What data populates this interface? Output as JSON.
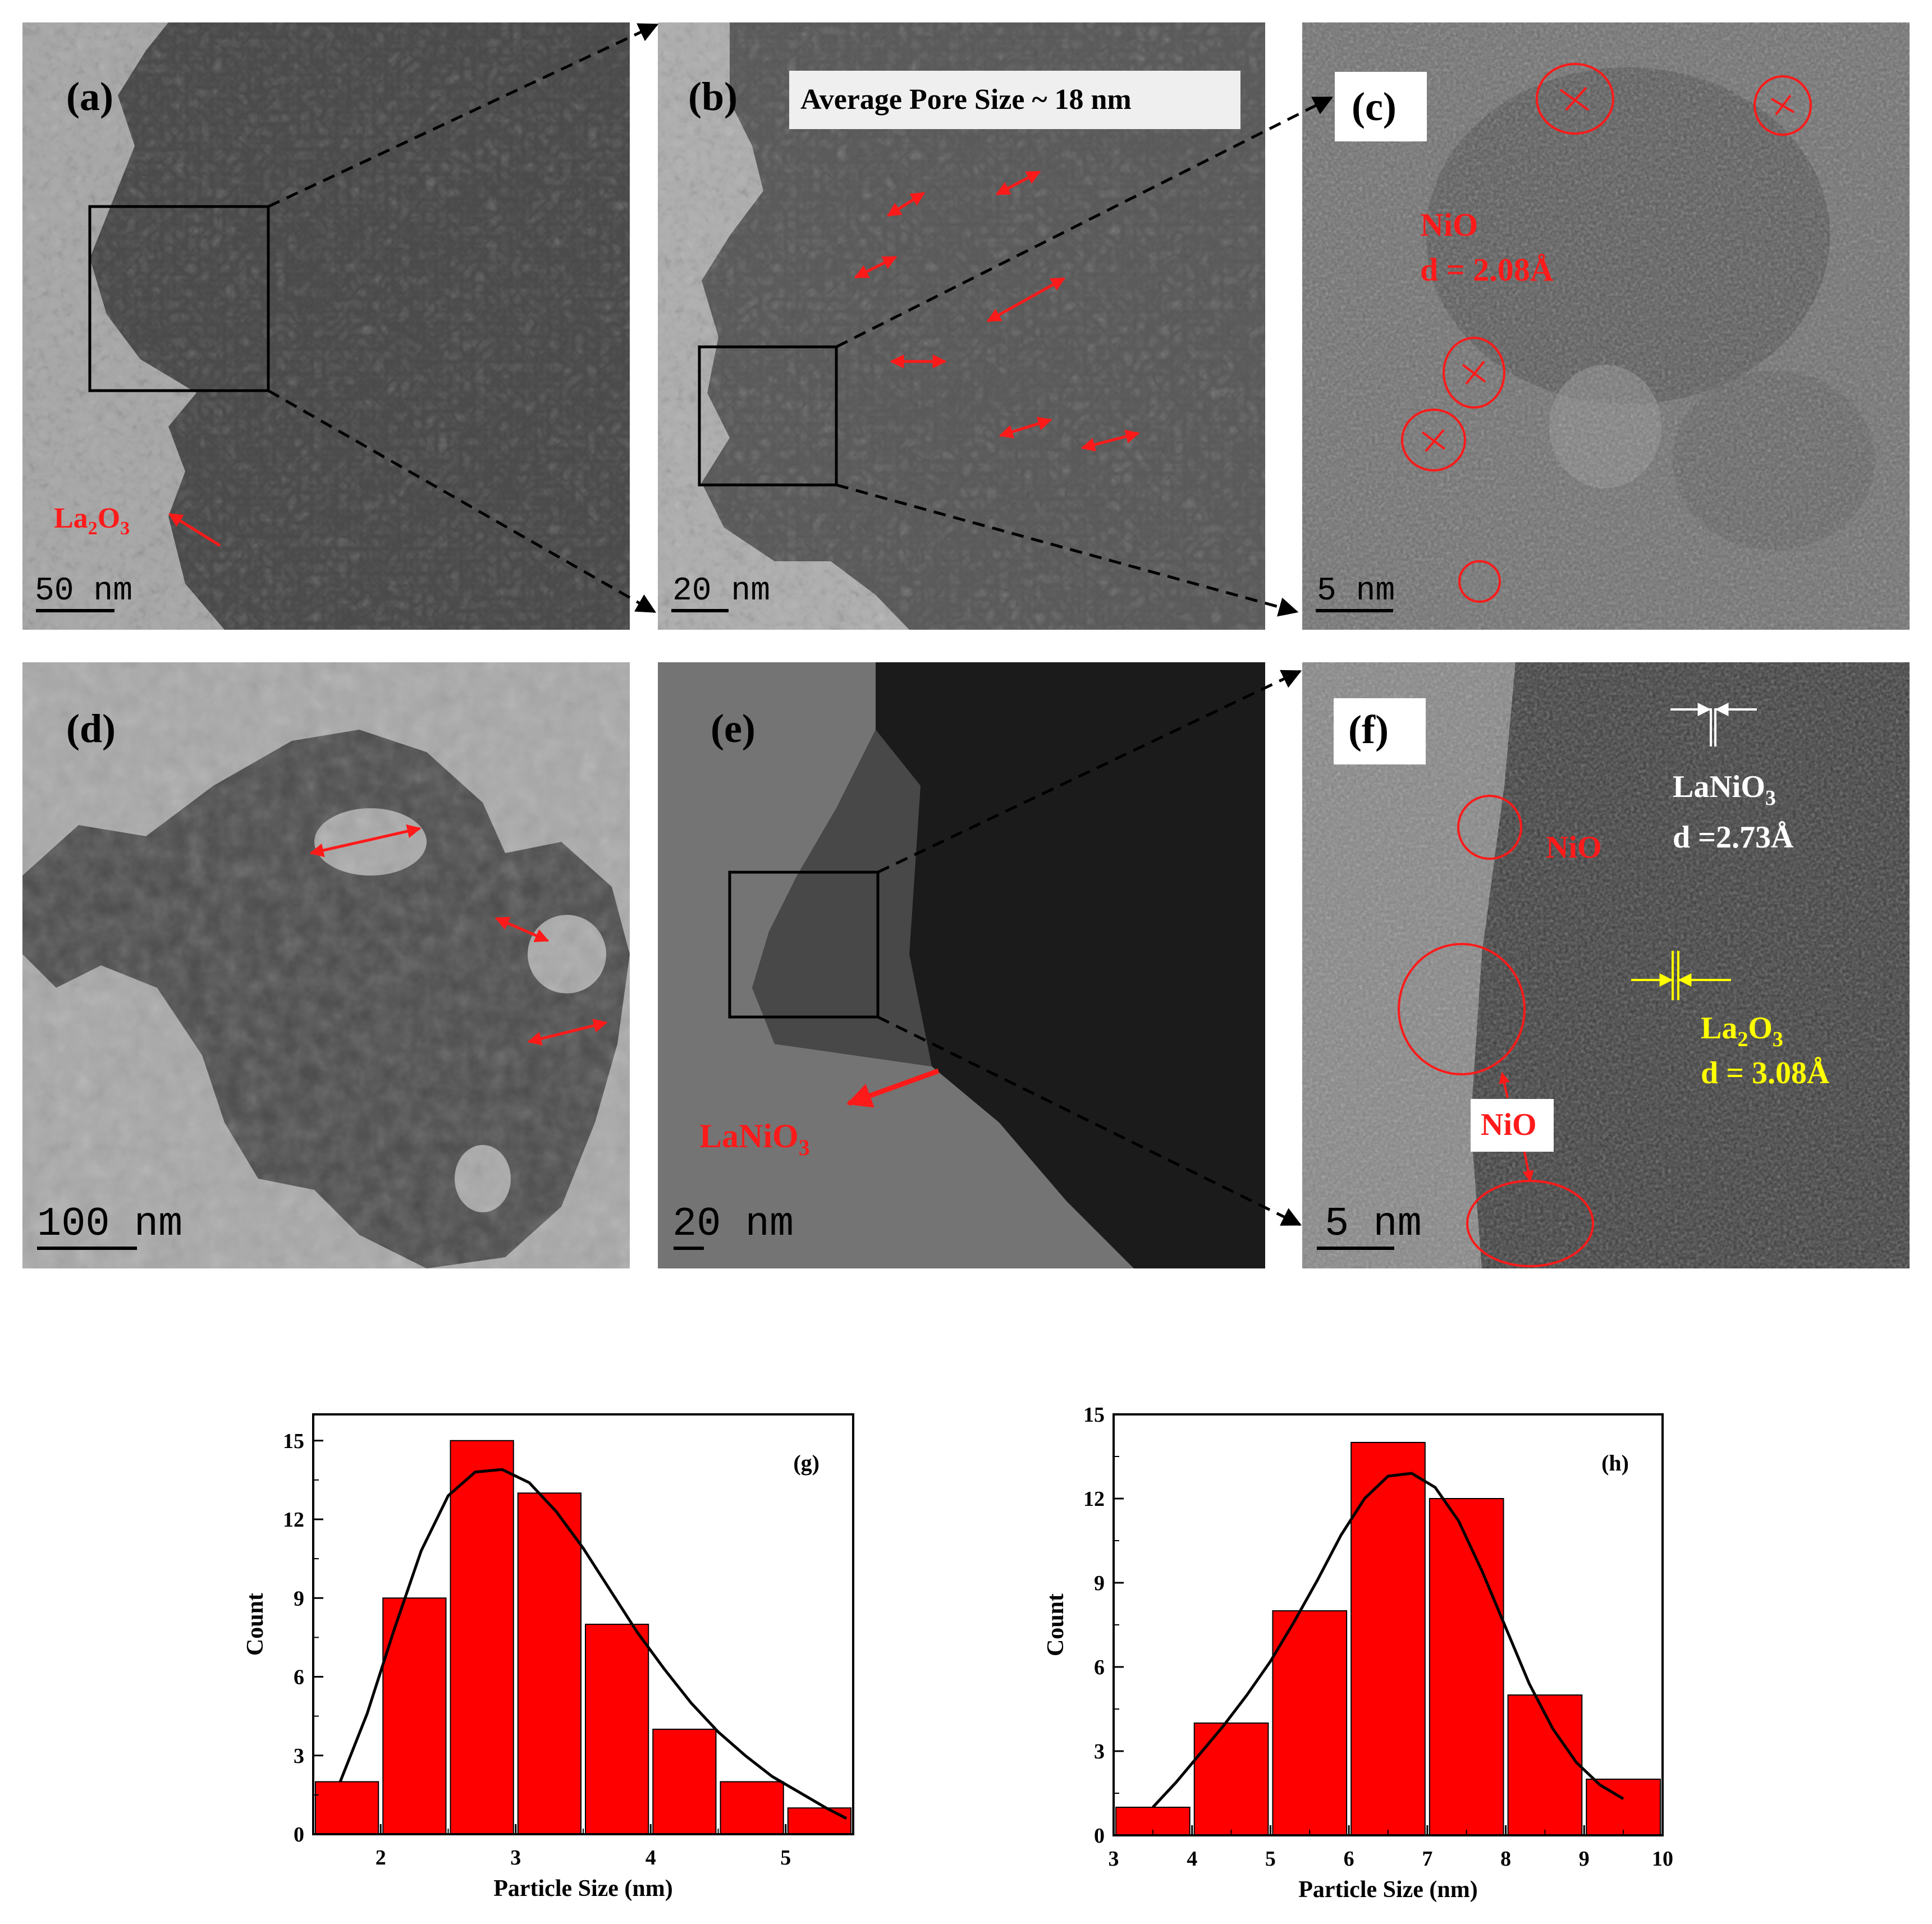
{
  "panels": {
    "a": {
      "label": "(a)",
      "scale_bar": "50 nm",
      "annotation": {
        "prefix": "La",
        "sub1": "2",
        "mid": "O",
        "sub2": "3"
      }
    },
    "b": {
      "label": "(b)",
      "scale_bar": "20 nm",
      "banner": "Average Pore Size ~ 18 nm"
    },
    "c": {
      "label": "(c)",
      "scale_bar": "5 nm",
      "phase": "NiO",
      "d_spacing": "d = 2.08Å"
    },
    "d": {
      "label": "(d)",
      "scale_bar": "100 nm"
    },
    "e": {
      "label": "(e)",
      "scale_bar": "20 nm",
      "annotation": {
        "prefix": "LaNiO",
        "sub": "3"
      }
    },
    "f": {
      "label": "(f)",
      "scale_bar": "5 nm",
      "nio_label_top": "NiO",
      "nio_label_box": "NiO",
      "lanio3": {
        "prefix": "LaNiO",
        "sub": "3",
        "d": "d =2.73Å"
      },
      "la2o3": {
        "prefix": "La",
        "sub1": "2",
        "mid": "O",
        "sub2": "3",
        "d": "d = 3.08Å"
      }
    }
  },
  "colors": {
    "bars": "#ff0000",
    "curve": "#000000",
    "annotation_red": "#ff1a1a",
    "annotation_yellow": "#ffff00",
    "annotation_white": "#ffffff"
  },
  "chart_data": [
    {
      "type": "bar",
      "panel_label": "(g)",
      "xlabel": "Particle Size (nm)",
      "ylabel": "Count",
      "xlim": [
        1.5,
        5.5
      ],
      "ylim": [
        0,
        16
      ],
      "xticks": [
        2,
        3,
        4,
        5
      ],
      "yticks": [
        0,
        3,
        6,
        9,
        12,
        15
      ],
      "bin_width": 0.5,
      "bin_centers": [
        1.75,
        2.25,
        2.75,
        3.25,
        3.75,
        4.25,
        4.75,
        5.25
      ],
      "values": [
        2,
        9,
        15,
        13,
        8,
        4,
        2,
        1
      ],
      "fit_curve": {
        "x": [
          1.7,
          1.9,
          2.1,
          2.3,
          2.5,
          2.7,
          2.9,
          3.1,
          3.3,
          3.5,
          3.7,
          3.9,
          4.1,
          4.3,
          4.5,
          4.7,
          4.9,
          5.1,
          5.3,
          5.45
        ],
        "y": [
          2.0,
          4.6,
          7.8,
          10.8,
          12.9,
          13.8,
          13.9,
          13.4,
          12.3,
          10.9,
          9.3,
          7.7,
          6.3,
          5.0,
          3.9,
          3.0,
          2.2,
          1.6,
          1.0,
          0.6
        ]
      }
    },
    {
      "type": "bar",
      "panel_label": "(h)",
      "xlabel": "Particle Size (nm)",
      "ylabel": "Count",
      "xlim": [
        3,
        10
      ],
      "ylim": [
        0,
        15
      ],
      "xticks": [
        3,
        4,
        5,
        6,
        7,
        8,
        9,
        10
      ],
      "yticks": [
        0,
        3,
        6,
        9,
        12,
        15
      ],
      "bin_width": 1,
      "bin_centers": [
        3.5,
        4.5,
        5.5,
        6.5,
        7.5,
        8.5,
        9.5
      ],
      "values": [
        1,
        4,
        8,
        14,
        12,
        5,
        2
      ],
      "fit_curve": {
        "x": [
          3.5,
          3.8,
          4.1,
          4.4,
          4.7,
          5.0,
          5.3,
          5.6,
          5.9,
          6.2,
          6.5,
          6.8,
          7.1,
          7.4,
          7.7,
          8.0,
          8.3,
          8.6,
          8.9,
          9.2,
          9.5
        ],
        "y": [
          1.0,
          1.9,
          2.9,
          3.9,
          5.0,
          6.2,
          7.6,
          9.1,
          10.7,
          12.0,
          12.8,
          12.9,
          12.4,
          11.2,
          9.4,
          7.4,
          5.4,
          3.8,
          2.6,
          1.8,
          1.3
        ]
      }
    }
  ]
}
